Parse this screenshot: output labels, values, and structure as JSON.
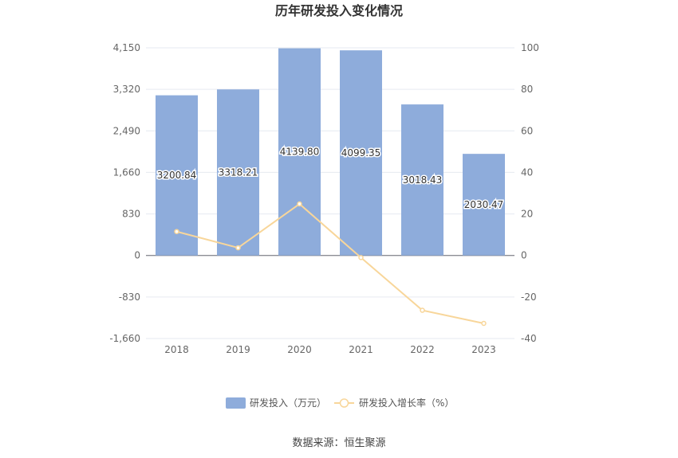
{
  "chart_data": {
    "type": "bar",
    "title": "历年研发投入变化情况",
    "categories": [
      "2018",
      "2019",
      "2020",
      "2021",
      "2022",
      "2023"
    ],
    "series": [
      {
        "name": "研发投入（万元）",
        "type": "bar",
        "axis": "left",
        "color": "#8eacdb",
        "values": [
          3200.84,
          3318.21,
          4139.8,
          4099.35,
          3018.43,
          2030.47
        ],
        "labels": [
          "3200.84",
          "3318.21",
          "4139.80",
          "4099.35",
          "3018.43",
          "2030.47"
        ]
      },
      {
        "name": "研发投入增长率（%）",
        "type": "line",
        "axis": "right",
        "color": "#f8d69a",
        "values": [
          11.5,
          3.7,
          24.8,
          -1.0,
          -26.4,
          -32.7
        ]
      }
    ],
    "y_left": {
      "ticks": [
        4150,
        3320,
        2490,
        1660,
        830,
        0,
        -830,
        -1660
      ],
      "tick_labels": [
        "4,150",
        "3,320",
        "2,490",
        "1,660",
        "830",
        "0",
        "-830",
        "-1,660"
      ],
      "range": [
        -1660,
        4150
      ]
    },
    "y_right": {
      "ticks": [
        100,
        80,
        60,
        40,
        20,
        0,
        -20,
        -40
      ],
      "tick_labels": [
        "100",
        "80",
        "60",
        "40",
        "20",
        "0",
        "-20",
        "-40"
      ],
      "range": [
        -40,
        100
      ]
    },
    "grid": true,
    "legend_position": "bottom-center",
    "source": "数据来源：恒生聚源"
  }
}
